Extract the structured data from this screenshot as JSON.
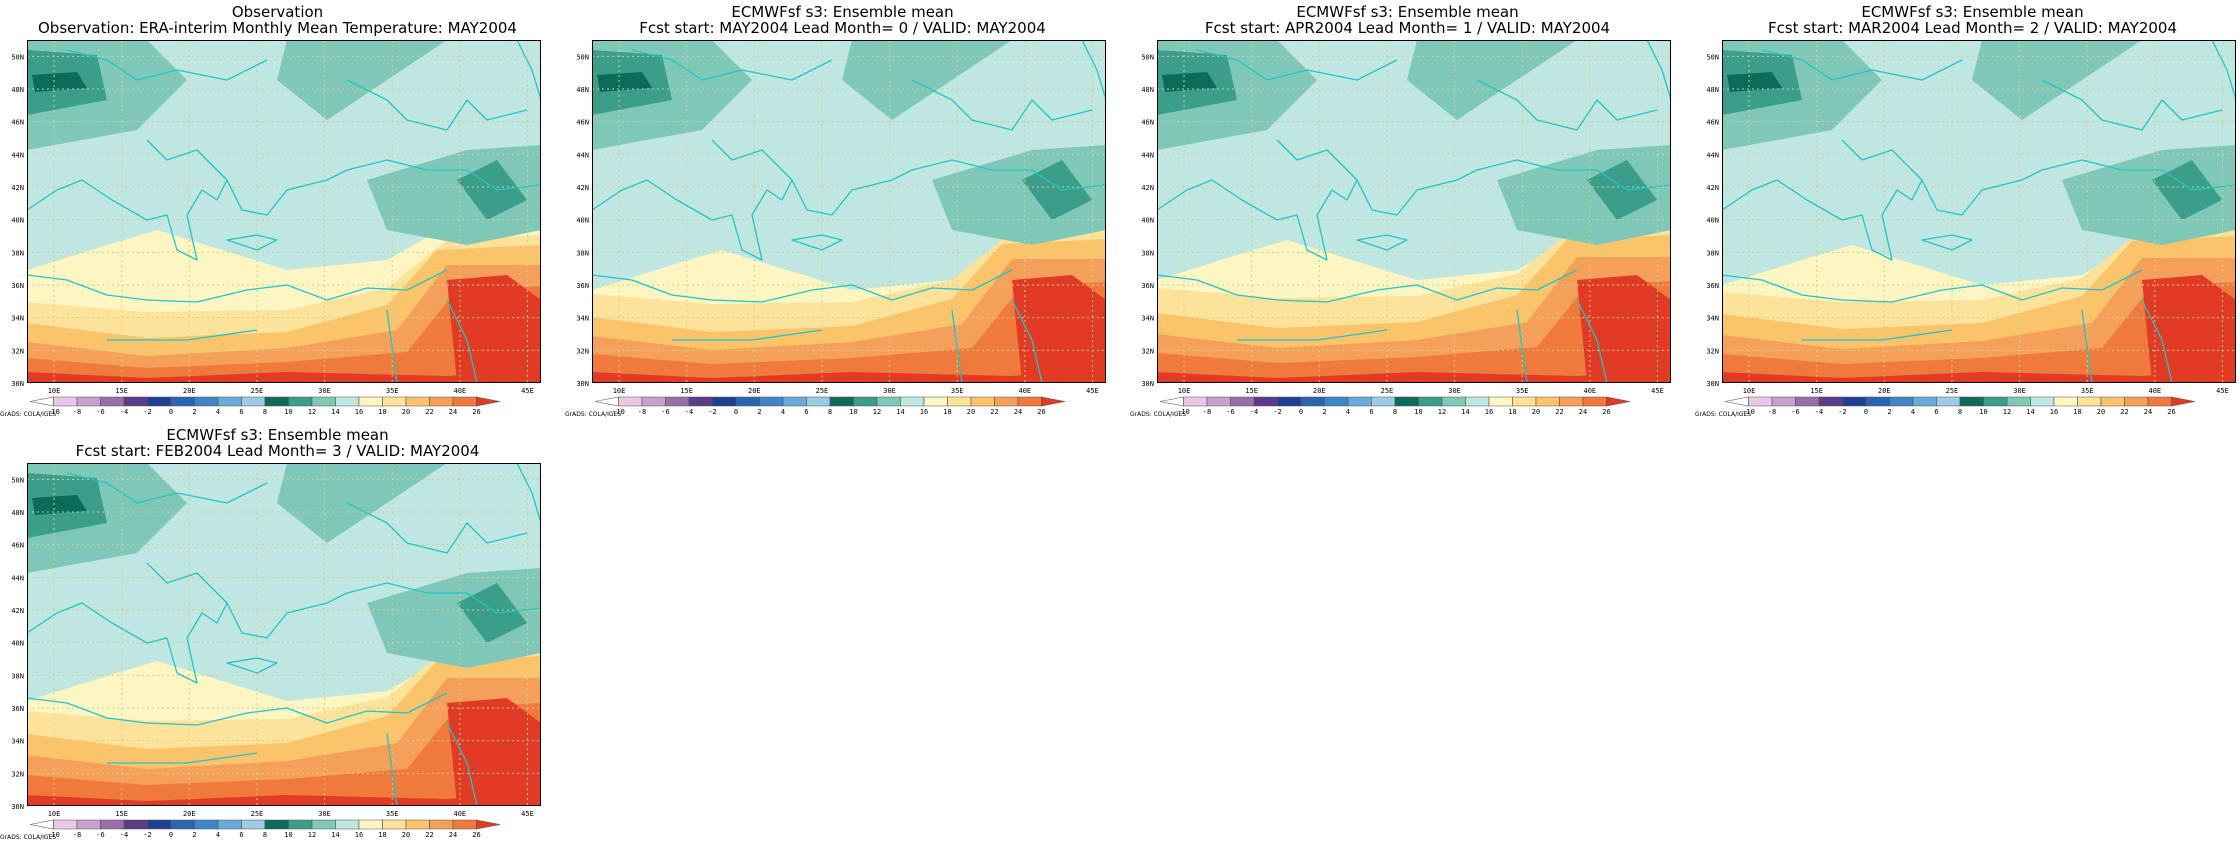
{
  "panels": [
    {
      "id": "obs",
      "line1": "Observation",
      "line2": "Observation: ERA-interim Monthly Mean Temperature: MAY2004",
      "variant": 0
    },
    {
      "id": "lead0",
      "line1": "ECMWFsf s3: Ensemble mean",
      "line2": "Fcst start: MAY2004  Lead Month= 0 / VALID: MAY2004",
      "variant": 1
    },
    {
      "id": "lead1",
      "line1": "ECMWFsf s3: Ensemble mean",
      "line2": "Fcst start: APR2004  Lead Month= 1 / VALID: MAY2004",
      "variant": 2
    },
    {
      "id": "lead2",
      "line1": "ECMWFsf s3: Ensemble mean",
      "line2": "Fcst start: MAR2004  Lead Month= 2 / VALID: MAY2004",
      "variant": 3
    },
    {
      "id": "lead3",
      "line1": "ECMWFsf s3: Ensemble mean",
      "line2": "Fcst start: FEB2004  Lead Month= 3 / VALID: MAY2004",
      "variant": 4
    }
  ],
  "lat_labels": [
    "30N",
    "32N",
    "34N",
    "36N",
    "38N",
    "40N",
    "42N",
    "44N",
    "46N",
    "48N",
    "50N"
  ],
  "lon_labels": [
    "10E",
    "15E",
    "20E",
    "25E",
    "30E",
    "35E",
    "40E",
    "45E"
  ],
  "colorbar": {
    "levels": [
      "-10",
      "-8",
      "-6",
      "-4",
      "-2",
      "0",
      "2",
      "4",
      "6",
      "8",
      "10",
      "12",
      "14",
      "16",
      "18",
      "20",
      "22",
      "24",
      "26"
    ],
    "colors": [
      "#ffffff",
      "#e9c9e9",
      "#c8a0d0",
      "#9a6fa8",
      "#5a3c88",
      "#1f3f92",
      "#2b64b0",
      "#3f86c6",
      "#6aaad6",
      "#9ccbe6",
      "#0c6b5a",
      "#3a9e8a",
      "#7fc8b8",
      "#bfe6e0",
      "#fdf6c3",
      "#fde39a",
      "#fbc46a",
      "#f5a05a",
      "#ef7a3c",
      "#e23b25"
    ],
    "caption": "GrADS: COLA/IGES"
  },
  "level_colors": [
    "#e23b25",
    "#ef7a3c",
    "#f5a05a",
    "#fbc46a",
    "#fde39a",
    "#fdf6c3",
    "#bfe6e0",
    "#7fc8b8",
    "#3a9e8a",
    "#0c6b5a"
  ],
  "style": {
    "coast_color": "#21c4c9",
    "grid_color": "#d0d08c"
  }
}
